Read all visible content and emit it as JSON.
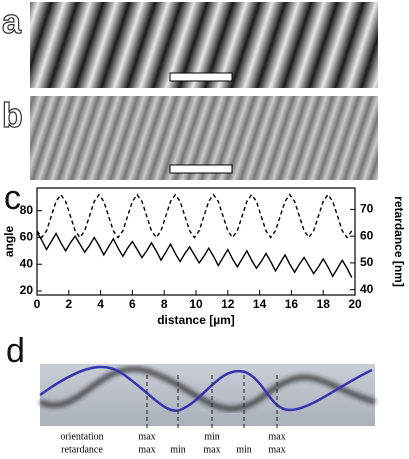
{
  "panel_labels": [
    "a",
    "b",
    "c",
    "d"
  ],
  "chart_data": {
    "type": "line",
    "xlabel": "distance [µm]",
    "ylabel": "angle",
    "y2label": "retardance [nm]",
    "xlim": [
      0,
      20
    ],
    "xticks": [
      0,
      2,
      4,
      6,
      8,
      10,
      12,
      14,
      16,
      18,
      20
    ],
    "ylim": [
      17,
      97
    ],
    "yticks": [
      20,
      40,
      60,
      80
    ],
    "y2lim": [
      38,
      78
    ],
    "y2ticks": [
      40,
      50,
      60,
      70
    ],
    "x": [
      0,
      0.3,
      0.6,
      0.9,
      1.2,
      1.5,
      1.8,
      2.1,
      2.4,
      2.7,
      3,
      3.3,
      3.6,
      3.9,
      4.2,
      4.5,
      4.8,
      5.1,
      5.4,
      5.7,
      6,
      6.3,
      6.6,
      6.9,
      7.2,
      7.5,
      7.8,
      8.1,
      8.4,
      8.7,
      9,
      9.3,
      9.6,
      9.9,
      10.2,
      10.5,
      10.8,
      11.1,
      11.4,
      11.7,
      12,
      12.3,
      12.6,
      12.9,
      13.2,
      13.5,
      13.8,
      14.1,
      14.4,
      14.7,
      15,
      15.3,
      15.6,
      15.9,
      16.2,
      16.5,
      16.8,
      17.1,
      17.4,
      17.7,
      18,
      18.3,
      18.6,
      18.9,
      19.2,
      19.5,
      19.8
    ],
    "series": [
      {
        "color": "#000000",
        "line_style": "solid",
        "axis": "y",
        "values": [
          64,
          58,
          51,
          57,
          63,
          56,
          50,
          56,
          61,
          55,
          49,
          54,
          60,
          54,
          47,
          53,
          59,
          52,
          46,
          52,
          57,
          51,
          45,
          50,
          56,
          50,
          43,
          49,
          55,
          48,
          42,
          48,
          53,
          47,
          41,
          46,
          52,
          46,
          39,
          45,
          51,
          44,
          38,
          44,
          50,
          43,
          37,
          42,
          48,
          42,
          35,
          41,
          47,
          40,
          34,
          40,
          45,
          39,
          33,
          38,
          44,
          38,
          31,
          37,
          43,
          37,
          30
        ]
      },
      {
        "color": "#000000",
        "line_style": "dashed",
        "axis": "y2",
        "values": [
          62,
          59.5,
          62,
          67.5,
          73,
          75.5,
          73,
          67.5,
          62,
          59.5,
          62,
          67.5,
          73,
          75.5,
          73,
          67.5,
          62,
          59.5,
          62,
          67.5,
          73,
          75.5,
          73,
          67.5,
          62,
          59.5,
          62,
          67.5,
          73,
          75.5,
          73,
          67.5,
          62,
          59.5,
          62,
          67.5,
          73,
          75.5,
          73,
          67.5,
          62,
          59.5,
          62,
          67.5,
          73,
          75.5,
          73,
          67.5,
          62,
          59.5,
          62,
          67.5,
          73,
          75.5,
          73,
          67.5,
          62,
          59.5,
          62,
          67.5,
          73,
          75.5,
          73,
          67.5,
          62,
          59.5,
          62
        ]
      }
    ]
  },
  "diagram": {
    "legend": [
      "orientation",
      "retardance"
    ],
    "markers": [
      {
        "top": "max",
        "bottom": "max"
      },
      {
        "bottom": "min"
      },
      {
        "top": "min",
        "bottom": "max"
      },
      {
        "bottom": "min"
      },
      {
        "top": "max",
        "bottom": "max"
      }
    ]
  }
}
